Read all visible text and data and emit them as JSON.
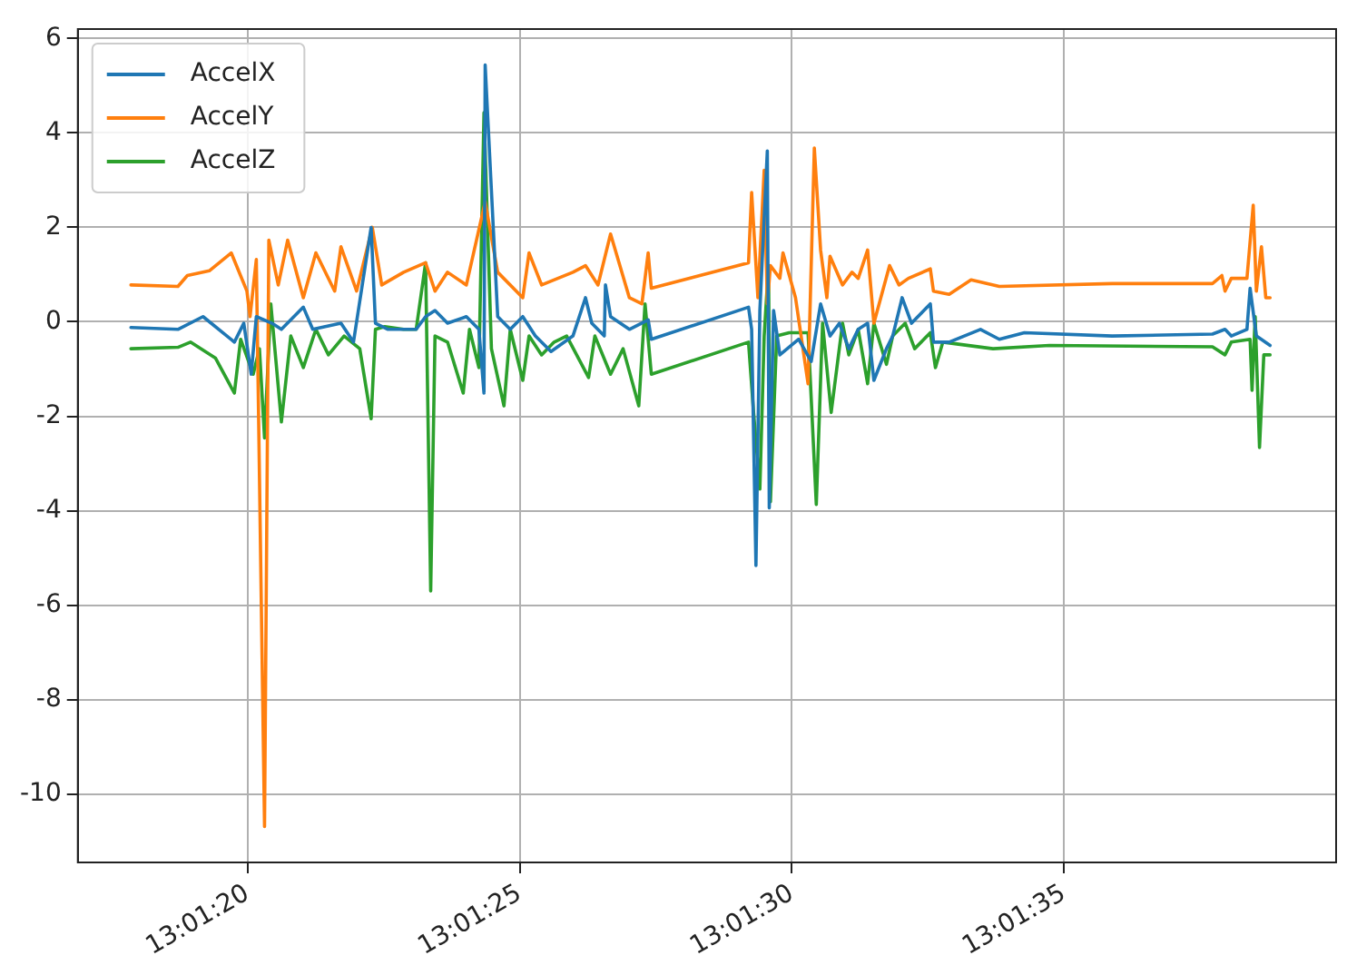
{
  "chart_data": {
    "type": "line",
    "legend": "top left",
    "grid": true,
    "marker": "none",
    "line_style": "solid",
    "xlim": [
      13.021356,
      13.027778
    ],
    "xticks": [
      {
        "value": 13.022222,
        "label": "13:01:20"
      },
      {
        "value": 13.023611,
        "label": "13:01:25"
      },
      {
        "value": 13.025,
        "label": "13:01:30"
      },
      {
        "value": 13.026389,
        "label": "13:01:35"
      }
    ],
    "ylim": [
      -11.45,
      6.2
    ],
    "yticks": [
      -10,
      -8,
      -6,
      -4,
      -2,
      0,
      2,
      4,
      6
    ],
    "series": [
      {
        "name": "AccelX",
        "color": "#1f77b4",
        "x": [
          13.021627,
          13.021867,
          13.021995,
          13.022155,
          13.022203,
          13.022241,
          13.022267,
          13.022347,
          13.022395,
          13.022507,
          13.022555,
          13.022699,
          13.022763,
          13.022853,
          13.022875,
          13.022939,
          13.023083,
          13.023131,
          13.023179,
          13.023243,
          13.023339,
          13.023403,
          13.023429,
          13.023435,
          13.023499,
          13.023563,
          13.023627,
          13.023691,
          13.023771,
          13.023883,
          13.023947,
          13.023979,
          13.024043,
          13.024049,
          13.024075,
          13.024171,
          13.024267,
          13.024283,
          13.024779,
          13.024795,
          13.024817,
          13.024837,
          13.024875,
          13.024885,
          13.024907,
          13.024939,
          13.025035,
          13.025099,
          13.025147,
          13.025195,
          13.025243,
          13.025291,
          13.025339,
          13.025387,
          13.025419,
          13.025483,
          13.025515,
          13.025563,
          13.025611,
          13.025707,
          13.025723,
          13.025803,
          13.025963,
          13.026059,
          13.026187,
          13.026635,
          13.027147,
          13.027211,
          13.027243,
          13.027323,
          13.027339,
          13.027371,
          13.027441
        ],
        "values": [
          -0.12,
          -0.16,
          0.11,
          -0.43,
          -0.03,
          -1.11,
          0.11,
          -0.03,
          -0.16,
          0.31,
          -0.16,
          -0.03,
          -0.43,
          2.0,
          -0.03,
          -0.16,
          -0.16,
          0.11,
          0.24,
          -0.03,
          0.11,
          -0.16,
          -1.51,
          5.44,
          0.11,
          -0.16,
          0.11,
          -0.3,
          -0.63,
          -0.3,
          0.51,
          -0.03,
          -0.3,
          0.78,
          0.11,
          -0.16,
          0.04,
          -0.37,
          0.31,
          -0.16,
          -5.16,
          0.24,
          3.62,
          -3.94,
          0.24,
          -0.7,
          -0.37,
          -0.84,
          0.38,
          -0.3,
          -0.03,
          -0.57,
          -0.16,
          -0.03,
          -1.24,
          -0.57,
          -0.3,
          0.51,
          -0.03,
          0.38,
          -0.43,
          -0.43,
          -0.16,
          -0.37,
          -0.23,
          -0.3,
          -0.26,
          -0.16,
          -0.3,
          -0.16,
          0.71,
          -0.3,
          -0.5
        ]
      },
      {
        "name": "AccelY",
        "color": "#ff7f0e",
        "x": [
          13.021627,
          13.021867,
          13.021915,
          13.022027,
          13.022139,
          13.022219,
          13.022235,
          13.022267,
          13.022309,
          13.022331,
          13.022379,
          13.022427,
          13.022507,
          13.022571,
          13.022667,
          13.022699,
          13.022779,
          13.022859,
          13.022907,
          13.023019,
          13.023131,
          13.023179,
          13.023243,
          13.023339,
          13.023435,
          13.023499,
          13.023627,
          13.023659,
          13.023723,
          13.023883,
          13.023947,
          13.024011,
          13.024075,
          13.024171,
          13.024235,
          13.024267,
          13.024283,
          13.024779,
          13.024795,
          13.024827,
          13.024859,
          13.024875,
          13.024891,
          13.024939,
          13.024955,
          13.025019,
          13.025083,
          13.025115,
          13.025147,
          13.025179,
          13.025195,
          13.025259,
          13.025307,
          13.025339,
          13.025387,
          13.025419,
          13.025499,
          13.025547,
          13.025595,
          13.025707,
          13.025723,
          13.025803,
          13.025915,
          13.026059,
          13.026635,
          13.027147,
          13.027195,
          13.027211,
          13.027243,
          13.027323,
          13.027355,
          13.027371,
          13.027397,
          13.027419,
          13.027441
        ],
        "values": [
          0.78,
          0.75,
          0.98,
          1.08,
          1.46,
          0.65,
          0.11,
          1.32,
          -10.69,
          1.73,
          0.78,
          1.73,
          0.51,
          1.46,
          0.65,
          1.59,
          0.65,
          2.0,
          0.78,
          1.05,
          1.25,
          0.65,
          1.05,
          0.78,
          2.54,
          1.05,
          0.51,
          1.46,
          0.78,
          1.05,
          1.19,
          0.78,
          1.86,
          0.51,
          0.38,
          1.46,
          0.71,
          1.25,
          2.74,
          0.51,
          3.21,
          0.38,
          1.19,
          0.92,
          1.46,
          0.51,
          -1.31,
          3.68,
          1.52,
          0.51,
          1.39,
          0.78,
          1.05,
          0.92,
          1.52,
          -0.03,
          1.19,
          0.78,
          0.92,
          1.12,
          0.65,
          0.58,
          0.89,
          0.75,
          0.81,
          0.81,
          0.98,
          0.65,
          0.92,
          0.92,
          2.47,
          0.65,
          1.59,
          0.51,
          0.51
        ]
      },
      {
        "name": "AccelZ",
        "color": "#2ca02c",
        "x": [
          13.021627,
          13.021867,
          13.021931,
          13.022059,
          13.022155,
          13.022187,
          13.022251,
          13.022283,
          13.022309,
          13.022341,
          13.022395,
          13.022443,
          13.022507,
          13.022571,
          13.022635,
          13.022715,
          13.022795,
          13.022853,
          13.022875,
          13.022923,
          13.023019,
          13.023083,
          13.023131,
          13.023157,
          13.023179,
          13.023243,
          13.023323,
          13.023355,
          13.023403,
          13.023429,
          13.023467,
          13.023531,
          13.023563,
          13.023627,
          13.023659,
          13.023723,
          13.023787,
          13.023851,
          13.023963,
          13.023995,
          13.024075,
          13.024139,
          13.024219,
          13.024251,
          13.024283,
          13.024779,
          13.024805,
          13.024837,
          13.024859,
          13.024881,
          13.024891,
          13.024923,
          13.024987,
          13.025083,
          13.025125,
          13.025157,
          13.025201,
          13.025259,
          13.025291,
          13.025339,
          13.025387,
          13.025419,
          13.025483,
          13.025515,
          13.025579,
          13.025627,
          13.025707,
          13.025733,
          13.025771,
          13.026027,
          13.026315,
          13.027147,
          13.027211,
          13.027243,
          13.027339,
          13.027349,
          13.027365,
          13.027387,
          13.027409,
          13.027441
        ],
        "values": [
          -0.57,
          -0.54,
          -0.43,
          -0.77,
          -1.51,
          -0.37,
          -1.11,
          -0.57,
          -2.46,
          0.38,
          -2.12,
          -0.3,
          -0.97,
          -0.16,
          -0.7,
          -0.3,
          -0.57,
          -2.05,
          -0.16,
          -0.1,
          -0.16,
          -0.16,
          1.25,
          -5.7,
          -0.3,
          -0.43,
          -1.51,
          -0.16,
          -0.97,
          4.43,
          -0.57,
          -1.78,
          -0.16,
          -1.24,
          -0.3,
          -0.7,
          -0.43,
          -0.3,
          -1.18,
          -0.3,
          -1.11,
          -0.57,
          -1.78,
          0.38,
          -1.11,
          -0.43,
          -1.92,
          -3.54,
          -0.3,
          1.19,
          -3.81,
          -0.3,
          -0.23,
          -0.23,
          -3.87,
          -0.03,
          -1.92,
          -0.03,
          -0.7,
          -0.16,
          -1.31,
          -0.03,
          -0.9,
          -0.3,
          -0.03,
          -0.57,
          -0.23,
          -0.97,
          -0.43,
          -0.57,
          -0.5,
          -0.53,
          -0.7,
          -0.43,
          -0.37,
          -1.45,
          0.11,
          -2.66,
          -0.7,
          -0.7
        ]
      }
    ]
  }
}
